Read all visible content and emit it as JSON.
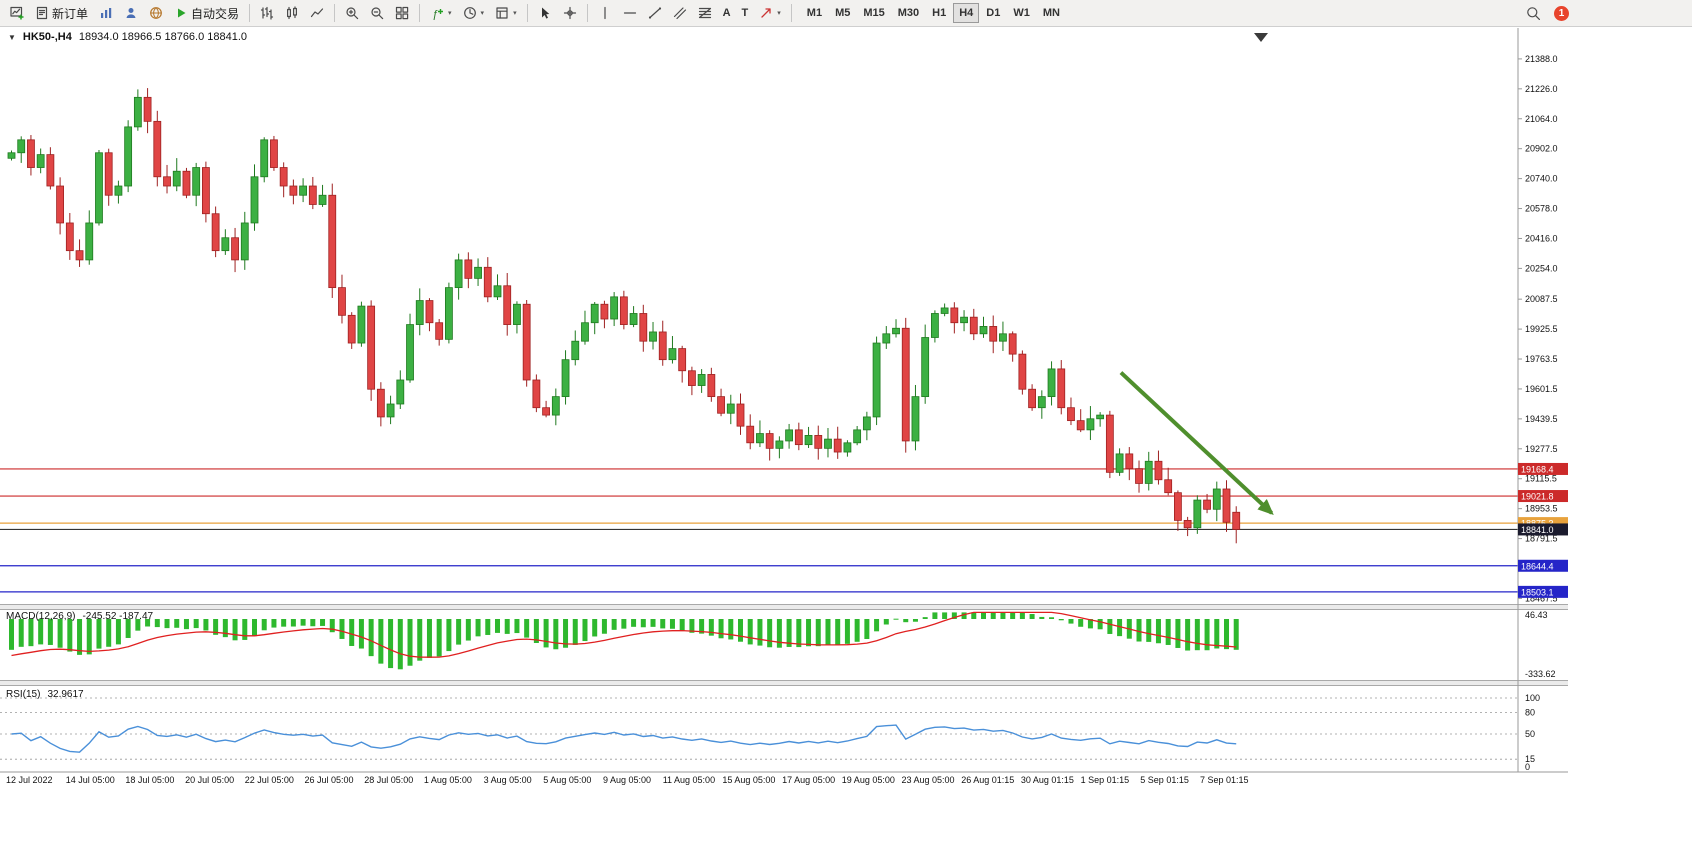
{
  "toolbar": {
    "new_order_label": "新订单",
    "autotrading_label": "自动交易",
    "timeframes": [
      "M1",
      "M5",
      "M15",
      "M30",
      "H1",
      "H4",
      "D1",
      "W1",
      "MN"
    ],
    "active_timeframe": "H4",
    "notification_count": "1",
    "tool_labels": {
      "text_tool": "A",
      "label_tool": "T"
    },
    "icon_glyphs": {
      "function": "ƒ",
      "caret": "▾"
    }
  },
  "chart": {
    "symbol_period": "HK50-,H4",
    "ohlc_text": "18934.0 18966.5 18766.0 18841.0",
    "dropdown_marker": "▼"
  },
  "price_axis": {
    "ticks": [
      "21388.0",
      "21226.0",
      "21064.0",
      "20902.0",
      "20740.0",
      "20578.0",
      "20416.0",
      "20254.0",
      "20087.5",
      "19925.5",
      "19763.5",
      "19601.5",
      "19439.5",
      "19277.5",
      "19115.5",
      "18953.5",
      "18791.5",
      "18629.5",
      "18467.5"
    ]
  },
  "time_axis": {
    "labels": [
      "12 Jul 2022",
      "14 Jul 05:00",
      "18 Jul 05:00",
      "20 Jul 05:00",
      "22 Jul 05:00",
      "26 Jul 05:00",
      "28 Jul 05:00",
      "1 Aug 05:00",
      "3 Aug 05:00",
      "5 Aug 05:00",
      "9 Aug 05:00",
      "11 Aug 05:00",
      "15 Aug 05:00",
      "17 Aug 05:00",
      "19 Aug 05:00",
      "23 Aug 05:00",
      "26 Aug 01:15",
      "30 Aug 01:15",
      "1 Sep 01:15",
      "5 Sep 01:15",
      "7 Sep 01:15"
    ]
  },
  "indicators": {
    "macd": {
      "label": "MACD(12,26,9)",
      "values": "-245.52 -187.47",
      "scale_max": "46.43",
      "scale_min": "-333.62"
    },
    "rsi": {
      "label": "RSI(15)",
      "value": "32.9617",
      "levels": [
        "100",
        "80",
        "50",
        "15",
        "0"
      ]
    }
  },
  "chart_data": {
    "type": "candlestick",
    "symbol": "HK50-",
    "period": "H4",
    "title": "HK50-,H4",
    "current_ohlc": {
      "open": 18934.0,
      "high": 18966.5,
      "low": 18766.0,
      "close": 18841.0
    },
    "price_range_visible": [
      18467.5,
      21388.0
    ],
    "approx_closes": [
      20880,
      20950,
      20800,
      20870,
      20700,
      20500,
      20350,
      20300,
      20500,
      20880,
      20650,
      20700,
      21020,
      21180,
      21050,
      20750,
      20700,
      20780,
      20650,
      20800,
      20550,
      20350,
      20420,
      20300,
      20500,
      20750,
      20950,
      20800,
      20700,
      20650,
      20700,
      20600,
      20650,
      20150,
      20000,
      19850,
      20050,
      19600,
      19450,
      19520,
      19650,
      19950,
      20080,
      19960,
      19870,
      20150,
      20300,
      20200,
      20260,
      20100,
      20160,
      19950,
      20060,
      19650,
      19500,
      19460,
      19560,
      19760,
      19860,
      19960,
      20060,
      19980,
      20100,
      19950,
      20010,
      19860,
      19910,
      19760,
      19820,
      19700,
      19620,
      19680,
      19560,
      19470,
      19520,
      19400,
      19310,
      19360,
      19280,
      19320,
      19380,
      19300,
      19350,
      19280,
      19330,
      19260,
      19310,
      19380,
      19450,
      19850,
      19900,
      19930,
      19320,
      19560,
      19880,
      20010,
      20040,
      19960,
      19990,
      19900,
      19940,
      19860,
      19900,
      19790,
      19600,
      19500,
      19560,
      19710,
      19500,
      19430,
      19380,
      19440,
      19460,
      19150,
      19250,
      19170,
      19090,
      19210,
      19110,
      19040,
      18890,
      18850,
      19000,
      18950,
      19060,
      18880,
      18841
    ],
    "hlines": [
      {
        "price": 19168.4,
        "label": "19168.4",
        "color": "#cc2a2a",
        "style": "solid"
      },
      {
        "price": 19021.8,
        "label": "19021.8",
        "color": "#cc2a2a",
        "style": "solid"
      },
      {
        "price": 18875.3,
        "label": "18875.3",
        "color": "#e8a23c",
        "style": "solid"
      },
      {
        "price": 18841.0,
        "label": "18841.0",
        "color": "#1b1b2e",
        "style": "solid",
        "role": "current-price"
      },
      {
        "price": 18644.4,
        "label": "18644.4",
        "color": "#2525c8",
        "style": "solid"
      },
      {
        "price": 18503.1,
        "label": "18503.1",
        "color": "#2525c8",
        "style": "solid"
      }
    ],
    "annotations": [
      {
        "type": "arrow",
        "color": "#4f8f2d",
        "from_index": 114.5,
        "from_price": 19690,
        "to_index": 130,
        "to_price": 18930
      }
    ],
    "macd_displayed": [
      -245.52,
      -187.47
    ],
    "macd_scale": {
      "max": 46.43,
      "min": -333.62
    },
    "rsi_displayed": 32.9617,
    "rsi_levels": [
      100,
      80,
      50,
      15,
      0
    ]
  },
  "colors": {
    "up": "#3cb043",
    "up_edge": "#1f7a1f",
    "down": "#e04545",
    "down_edge": "#9e2121",
    "macd_hist": "#2eb82e",
    "macd_signal": "#e02020",
    "rsi_line": "#4a90d9",
    "axis_text": "#111111"
  }
}
